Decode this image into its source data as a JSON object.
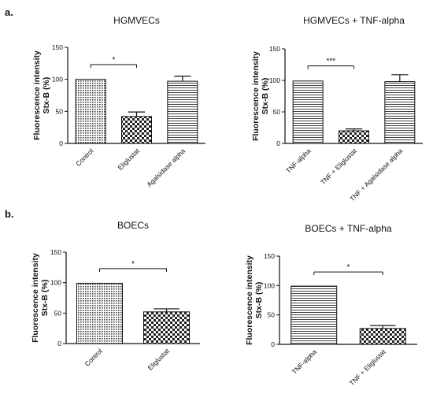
{
  "panel_labels": [
    "a.",
    "b."
  ],
  "chart_data": [
    {
      "type": "bar",
      "title": "HGMVECs",
      "ylabel": [
        "Fluorescence intensity",
        "Stx-B (%)"
      ],
      "xlabel": "",
      "ylim": [
        0,
        150
      ],
      "yticks": [
        "0",
        "50",
        "100",
        "150"
      ],
      "categories": [
        "Control",
        "Eliglustat",
        "Agalsidase alpha"
      ],
      "values": [
        100,
        42,
        97
      ],
      "errors": [
        0,
        7,
        8
      ],
      "patterns": [
        "dots",
        "checker",
        "hlines"
      ],
      "significance": [
        {
          "from": 0,
          "to": 1,
          "label": "*"
        }
      ]
    },
    {
      "type": "bar",
      "title": "HGMVECs + TNF-alpha",
      "ylabel": [
        "Fluorescence intensity",
        "Stx-B (%)"
      ],
      "xlabel": "",
      "ylim": [
        0,
        150
      ],
      "yticks": [
        "0",
        "50",
        "100",
        "150"
      ],
      "categories": [
        "TNF-alpha",
        "TNF + Eliglustat",
        "TNF + Agalsidase alpha"
      ],
      "values": [
        99,
        20,
        98
      ],
      "errors": [
        0,
        3,
        11
      ],
      "patterns": [
        "hlines",
        "checker",
        "hlines"
      ],
      "significance": [
        {
          "from": 0,
          "to": 1,
          "label": "***"
        }
      ]
    },
    {
      "type": "bar",
      "title": "BOECs",
      "ylabel": [
        "Fluorescence intensity",
        "Stx-B (%)"
      ],
      "xlabel": "",
      "ylim": [
        0,
        150
      ],
      "yticks": [
        "0",
        "50",
        "100",
        "150"
      ],
      "categories": [
        "Control",
        "Eliglustat"
      ],
      "values": [
        99,
        52
      ],
      "errors": [
        0,
        5
      ],
      "patterns": [
        "dots",
        "checker"
      ],
      "significance": [
        {
          "from": 0,
          "to": 1,
          "label": "*"
        }
      ]
    },
    {
      "type": "bar",
      "title": "BOECs + TNF-alpha",
      "ylabel": [
        "Fluorescence intensity",
        "Stx-B (%)"
      ],
      "xlabel": "",
      "ylim": [
        0,
        150
      ],
      "yticks": [
        "0",
        "50",
        "100",
        "150"
      ],
      "categories": [
        "TNF-alpha",
        "TNF + Eliglustat"
      ],
      "values": [
        99,
        27
      ],
      "errors": [
        0,
        5
      ],
      "patterns": [
        "hlines",
        "checker"
      ],
      "significance": [
        {
          "from": 0,
          "to": 1,
          "label": "*"
        }
      ]
    }
  ]
}
